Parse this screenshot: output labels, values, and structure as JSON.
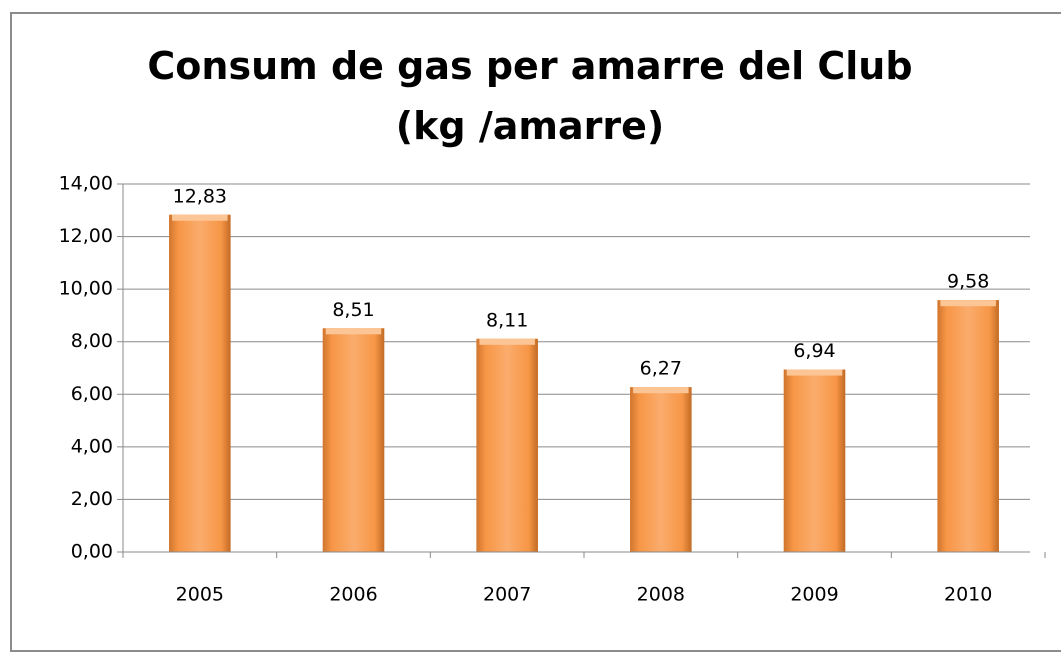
{
  "chart_data": {
    "type": "bar",
    "title": "Consum de gas per amarre del Club  (kg /amarre)",
    "categories": [
      "2005",
      "2006",
      "2007",
      "2008",
      "2009",
      "2010"
    ],
    "values": [
      12.83,
      8.51,
      8.11,
      6.27,
      6.94,
      9.58
    ],
    "value_labels": [
      "12,83",
      "8,51",
      "8,11",
      "6,27",
      "6,94",
      "9,58"
    ],
    "color": "#f79646",
    "ylim": [
      0,
      14
    ],
    "yticks": [
      {
        "value": 0,
        "label": "0,00"
      },
      {
        "value": 2,
        "label": "2,00"
      },
      {
        "value": 4,
        "label": "4,00"
      },
      {
        "value": 6,
        "label": "6,00"
      },
      {
        "value": 8,
        "label": "8,00"
      },
      {
        "value": 10,
        "label": "10,00"
      },
      {
        "value": 12,
        "label": "12,00"
      },
      {
        "value": 14,
        "label": "14,00"
      }
    ],
    "grid": true
  }
}
